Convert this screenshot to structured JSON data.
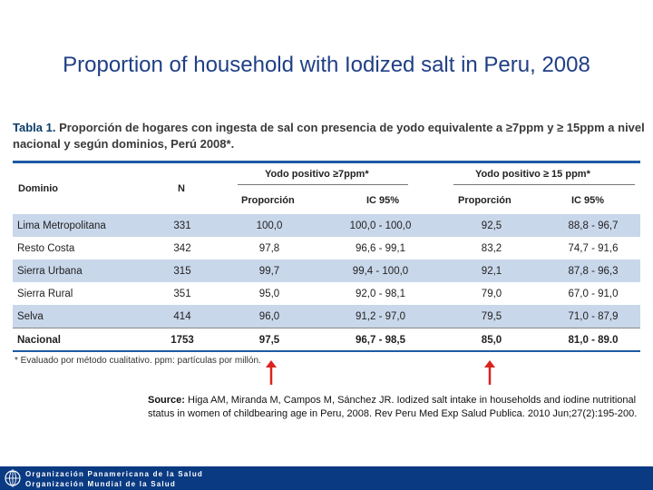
{
  "slide": {
    "title": "Proportion of household with Iodized salt in Peru, 2008"
  },
  "caption": {
    "label": "Tabla 1.",
    "line1_text": "Proporción de hogares con ingesta de sal con presencia de yodo equivalente a ≥7ppm y ≥ 15ppm a nivel",
    "line2_text": "nacional y según dominios, Perú 2008*."
  },
  "headers": {
    "dominio": "Dominio",
    "n": "N",
    "group1": "Yodo positivo ≥7ppm*",
    "group2": "Yodo positivo ≥ 15 ppm*",
    "proporcion1": "Proporción",
    "ic1": "IC 95%",
    "proporcion2": "Proporción",
    "ic2": "IC 95%"
  },
  "rows": [
    {
      "dominio": "Lima Metropolitana",
      "n": "331",
      "p1": "100,0",
      "ic1": "100,0 - 100,0",
      "p2": "92,5",
      "ic2": "88,8 - 96,7"
    },
    {
      "dominio": "Resto Costa",
      "n": "342",
      "p1": "97,8",
      "ic1": "96,6 - 99,1",
      "p2": "83,2",
      "ic2": "74,7 - 91,6"
    },
    {
      "dominio": "Sierra Urbana",
      "n": "315",
      "p1": "99,7",
      "ic1": "99,4 - 100,0",
      "p2": "92,1",
      "ic2": "87,8 - 96,3"
    },
    {
      "dominio": "Sierra Rural",
      "n": "351",
      "p1": "95,0",
      "ic1": "92,0 - 98,1",
      "p2": "79,0",
      "ic2": "67,0 - 91,0"
    },
    {
      "dominio": "Selva",
      "n": "414",
      "p1": "96,0",
      "ic1": "91,2 - 97,0",
      "p2": "79,5",
      "ic2": "71,0 - 87,9"
    }
  ],
  "total": {
    "dominio": "Nacional",
    "n": "1753",
    "p1": "97,5",
    "ic1": "96,7 - 98,5",
    "p2": "85,0",
    "ic2": "81,0 - 89.0"
  },
  "footnote": "* Evaluado por método cualitativo. ppm: partículas por millón.",
  "source": {
    "label": "Source:",
    "text": "Higa AM, Miranda M, Campos M, Sánchez JR. Iodized salt intake in households and iodine nutritional status in women of childbearing age in Peru, 2008. Rev Peru Med Exp Salud Publica. 2010 Jun;27(2):195-200."
  },
  "footer": {
    "line1": "Organización Panamericana de la Salud",
    "line2": "Organización Mundial de la Salud"
  },
  "colors": {
    "title": "#1f3f86",
    "rule": "#1e5aa3",
    "row_shade": "#c9d7ea",
    "arrow": "#d9231f",
    "footer": "#0a3a82"
  }
}
